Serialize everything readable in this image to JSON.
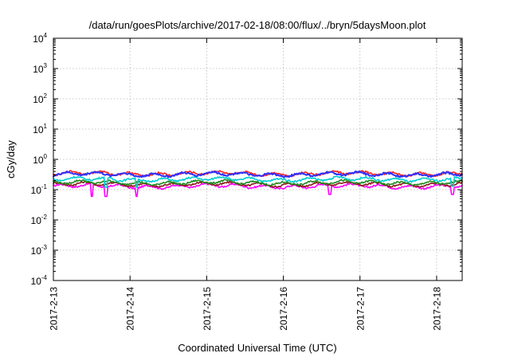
{
  "chart_data": {
    "type": "line",
    "title": "/data/run/goesPlots/archive/2017-02-18/08:00/flux/../bryn/5daysMoon.plot",
    "xlabel": "Coordinated Universal Time (UTC)",
    "ylabel": "cGy/day",
    "yscale": "log",
    "ylim": [
      0.0001,
      10000
    ],
    "xlim": [
      "2017-02-13T00:00",
      "2017-02-18T08:00"
    ],
    "grid": true,
    "x_ticks": [
      "2017-2-13",
      "2017-2-14",
      "2017-2-15",
      "2017-2-16",
      "2017-2-17",
      "2017-2-18"
    ],
    "y_ticks": [
      {
        "base": "10",
        "exp": "-4",
        "value": 0.0001
      },
      {
        "base": "10",
        "exp": "-3",
        "value": 0.001
      },
      {
        "base": "10",
        "exp": "-2",
        "value": 0.01
      },
      {
        "base": "10",
        "exp": "-1",
        "value": 0.1
      },
      {
        "base": "10",
        "exp": "0",
        "value": 1
      },
      {
        "base": "10",
        "exp": "1",
        "value": 10
      },
      {
        "base": "10",
        "exp": "2",
        "value": 100
      },
      {
        "base": "10",
        "exp": "3",
        "value": 1000
      },
      {
        "base": "10",
        "exp": "4",
        "value": 10000
      }
    ],
    "series": [
      {
        "color": "#ff00ff",
        "level": 0.13,
        "dips": [
          {
            "t": "2017-02-13T12:00",
            "v": 0.06
          },
          {
            "t": "2017-02-13T16:30",
            "v": 0.06
          },
          {
            "t": "2017-02-14T02:00",
            "v": 0.06
          },
          {
            "t": "2017-02-16T14:30",
            "v": 0.07
          },
          {
            "t": "2017-02-18T05:00",
            "v": 0.07
          }
        ]
      },
      {
        "color": "#8b1a1a",
        "level": 0.15,
        "dips": []
      },
      {
        "color": "#228b22",
        "level": 0.17,
        "dips": []
      },
      {
        "color": "#00ced1",
        "level": 0.22,
        "dips": [
          {
            "t": "2017-02-13T16:30",
            "v": 0.12
          },
          {
            "t": "2017-02-14T02:00",
            "v": 0.12
          },
          {
            "t": "2017-02-18T05:00",
            "v": 0.13
          }
        ]
      },
      {
        "color": "#ff2020",
        "level": 0.34,
        "dips": []
      },
      {
        "color": "#3030ff",
        "level": 0.32,
        "dips": []
      }
    ]
  }
}
